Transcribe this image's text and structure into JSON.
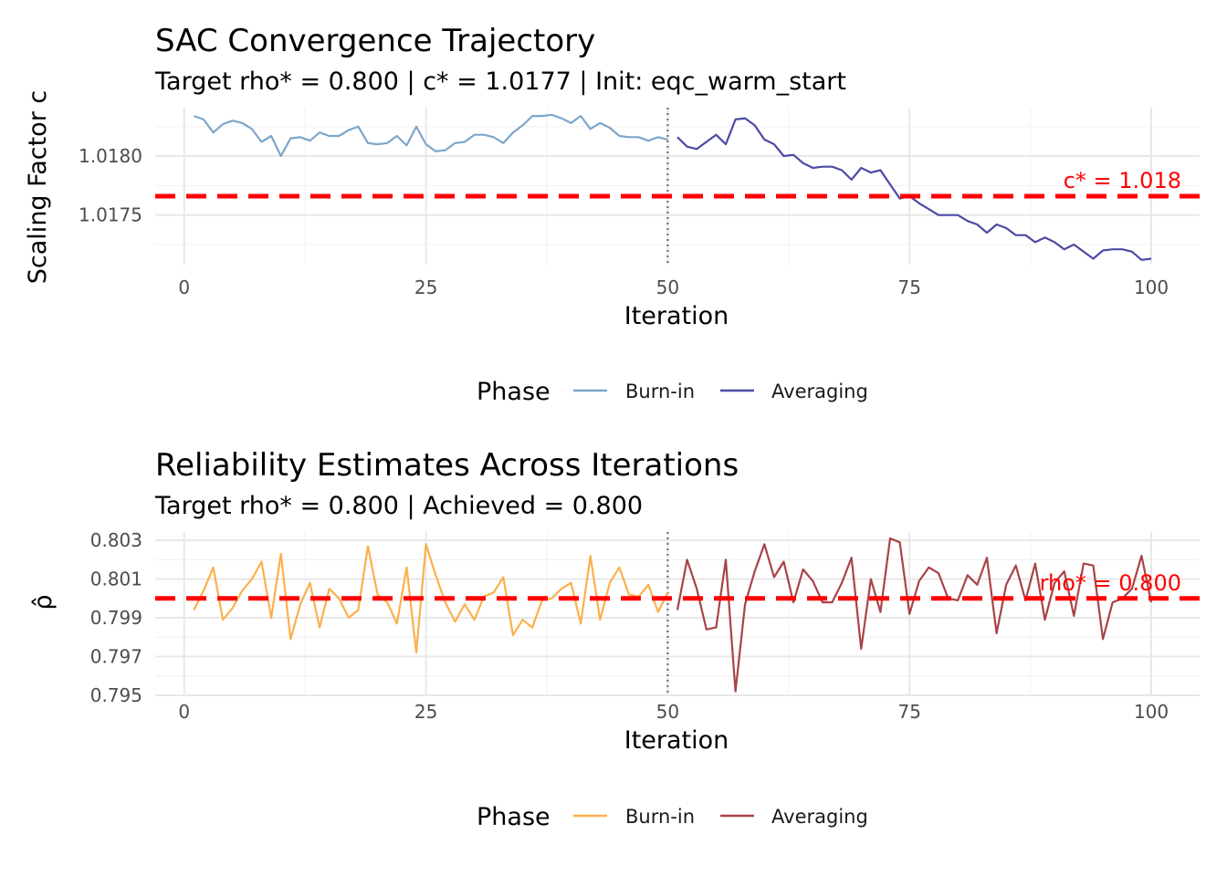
{
  "chart_data": [
    {
      "type": "line",
      "title": "SAC Convergence Trajectory",
      "subtitle": "Target rho* = 0.800 | c* = 1.0177 | Init: eqc_warm_start",
      "xlabel": "Iteration",
      "ylabel": "Scaling Factor c",
      "xlim": [
        -3,
        105
      ],
      "ylim": [
        1.01708,
        1.01841
      ],
      "x_ticks": [
        0,
        25,
        50,
        75,
        100
      ],
      "x_minor_ticks": [
        12.5,
        37.5,
        62.5,
        87.5
      ],
      "x_tick_labels": [
        "0",
        "25",
        "50",
        "75",
        "100"
      ],
      "y_ticks": [
        1.0175,
        1.018
      ],
      "y_minor_ticks": [
        1.01725,
        1.01775,
        1.01825
      ],
      "y_tick_labels": [
        "1.0175",
        "1.0180"
      ],
      "grid": true,
      "vline": 50,
      "reference": {
        "value": 1.01766,
        "label": "c* = 1.018",
        "color": "#ff0000"
      },
      "legend": {
        "title": "Phase",
        "position": "bottom"
      },
      "series": [
        {
          "name": "Burn-in",
          "color": "#7ea6cb",
          "x": [
            1,
            2,
            3,
            4,
            5,
            6,
            7,
            8,
            9,
            10,
            11,
            12,
            13,
            14,
            15,
            16,
            17,
            18,
            19,
            20,
            21,
            22,
            23,
            24,
            25,
            26,
            27,
            28,
            29,
            30,
            31,
            32,
            33,
            34,
            35,
            36,
            37,
            38,
            39,
            40,
            41,
            42,
            43,
            44,
            45,
            46,
            47,
            48,
            49,
            50
          ],
          "values": [
            1.01834,
            1.01831,
            1.0182,
            1.01827,
            1.0183,
            1.01828,
            1.01823,
            1.01812,
            1.01817,
            1.018,
            1.01815,
            1.01816,
            1.01813,
            1.0182,
            1.01817,
            1.01817,
            1.01822,
            1.01825,
            1.01811,
            1.0181,
            1.01811,
            1.01817,
            1.01809,
            1.01825,
            1.0181,
            1.01804,
            1.01805,
            1.01811,
            1.01812,
            1.01818,
            1.01818,
            1.01816,
            1.01811,
            1.0182,
            1.01826,
            1.01834,
            1.01834,
            1.01835,
            1.01832,
            1.01828,
            1.01834,
            1.01823,
            1.01828,
            1.01824,
            1.01817,
            1.01816,
            1.01816,
            1.01813,
            1.01816,
            1.01814
          ]
        },
        {
          "name": "Averaging",
          "color": "#4c4aa4",
          "x": [
            51,
            52,
            53,
            54,
            55,
            56,
            57,
            58,
            59,
            60,
            61,
            62,
            63,
            64,
            65,
            66,
            67,
            68,
            69,
            70,
            71,
            72,
            73,
            74,
            75,
            76,
            77,
            78,
            79,
            80,
            81,
            82,
            83,
            84,
            85,
            86,
            87,
            88,
            89,
            90,
            91,
            92,
            93,
            94,
            95,
            96,
            97,
            98,
            99,
            100
          ],
          "values": [
            1.01816,
            1.01808,
            1.01806,
            1.01812,
            1.01818,
            1.0181,
            1.01831,
            1.01832,
            1.01826,
            1.01814,
            1.0181,
            1.018,
            1.01801,
            1.01794,
            1.0179,
            1.01791,
            1.01791,
            1.01788,
            1.0178,
            1.0179,
            1.01786,
            1.01788,
            1.01776,
            1.01764,
            1.01766,
            1.0176,
            1.01755,
            1.0175,
            1.0175,
            1.0175,
            1.01745,
            1.01742,
            1.01735,
            1.01742,
            1.01739,
            1.01733,
            1.01733,
            1.01727,
            1.01731,
            1.01727,
            1.01721,
            1.01725,
            1.01719,
            1.01713,
            1.0172,
            1.01721,
            1.01721,
            1.01719,
            1.01712,
            1.01713
          ]
        }
      ]
    },
    {
      "type": "line",
      "title": "Reliability Estimates Across Iterations",
      "subtitle": "Target rho* = 0.800 | Achieved = 0.800",
      "xlabel": "Iteration",
      "ylabel": "ρ̂",
      "xlim": [
        -3,
        105
      ],
      "ylim": [
        0.79495,
        0.80343
      ],
      "x_ticks": [
        0,
        25,
        50,
        75,
        100
      ],
      "x_minor_ticks": [
        12.5,
        37.5,
        62.5,
        87.5
      ],
      "x_tick_labels": [
        "0",
        "25",
        "50",
        "75",
        "100"
      ],
      "y_ticks": [
        0.795,
        0.797,
        0.799,
        0.801,
        0.803
      ],
      "y_minor_ticks": [
        0.796,
        0.798,
        0.8,
        0.802
      ],
      "y_tick_labels": [
        "0.795",
        "0.797",
        "0.799",
        "0.801",
        "0.803"
      ],
      "grid": true,
      "vline": 50,
      "reference": {
        "value": 0.8,
        "label": "rho* = 0.800",
        "color": "#ff0000"
      },
      "legend": {
        "title": "Phase",
        "position": "bottom"
      },
      "series": [
        {
          "name": "Burn-in",
          "color": "#fbb04c",
          "x": [
            1,
            2,
            3,
            4,
            5,
            6,
            7,
            8,
            9,
            10,
            11,
            12,
            13,
            14,
            15,
            16,
            17,
            18,
            19,
            20,
            21,
            22,
            23,
            24,
            25,
            26,
            27,
            28,
            29,
            30,
            31,
            32,
            33,
            34,
            35,
            36,
            37,
            38,
            39,
            40,
            41,
            42,
            43,
            44,
            45,
            46,
            47,
            48,
            49,
            50
          ],
          "values": [
            0.7994,
            0.8004,
            0.8016,
            0.7989,
            0.7995,
            0.8004,
            0.801,
            0.8019,
            0.799,
            0.8023,
            0.7979,
            0.7997,
            0.8008,
            0.7985,
            0.8005,
            0.8,
            0.799,
            0.7994,
            0.8027,
            0.8002,
            0.7998,
            0.7987,
            0.8016,
            0.7972,
            0.8028,
            0.8012,
            0.7998,
            0.7988,
            0.7997,
            0.7989,
            0.8001,
            0.8003,
            0.8011,
            0.7981,
            0.7989,
            0.7985,
            0.7999,
            0.8,
            0.8005,
            0.8008,
            0.7987,
            0.8022,
            0.7989,
            0.8008,
            0.8016,
            0.8002,
            0.8001,
            0.8007,
            0.7993,
            0.8003
          ]
        },
        {
          "name": "Averaging",
          "color": "#a84448",
          "x": [
            51,
            52,
            53,
            54,
            55,
            56,
            57,
            58,
            59,
            60,
            61,
            62,
            63,
            64,
            65,
            66,
            67,
            68,
            69,
            70,
            71,
            72,
            73,
            74,
            75,
            76,
            77,
            78,
            79,
            80,
            81,
            82,
            83,
            84,
            85,
            86,
            87,
            88,
            89,
            90,
            91,
            92,
            93,
            94,
            95,
            96,
            97,
            98,
            99,
            100
          ],
          "values": [
            0.7994,
            0.802,
            0.8005,
            0.7984,
            0.7985,
            0.802,
            0.7952,
            0.7997,
            0.8014,
            0.8028,
            0.8011,
            0.8019,
            0.7998,
            0.8015,
            0.8009,
            0.7998,
            0.7998,
            0.8008,
            0.8021,
            0.7974,
            0.801,
            0.7993,
            0.8031,
            0.8029,
            0.7992,
            0.8009,
            0.8016,
            0.8013,
            0.8,
            0.7999,
            0.8012,
            0.8007,
            0.8021,
            0.7982,
            0.8007,
            0.8017,
            0.7999,
            0.8018,
            0.7989,
            0.8008,
            0.8014,
            0.7991,
            0.8018,
            0.8017,
            0.7979,
            0.7998,
            0.8,
            0.8005,
            0.8022,
            0.7998
          ]
        }
      ]
    }
  ]
}
